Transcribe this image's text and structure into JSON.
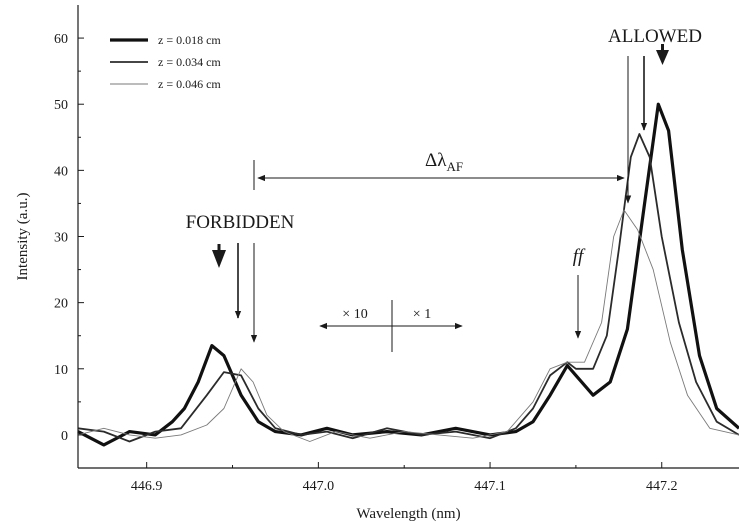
{
  "chart_data": {
    "type": "line",
    "xlabel": "Wavelength (nm)",
    "ylabel": "Intensity (a.u.)",
    "xlim": [
      446.86,
      447.245
    ],
    "ylim": [
      -5,
      65
    ],
    "x_ticks": [
      446.9,
      447.0,
      447.1,
      447.2
    ],
    "x_tick_labels": [
      "446.9",
      "447.0",
      "447.1",
      "447.2"
    ],
    "y_ticks": [
      0,
      10,
      20,
      30,
      40,
      50,
      60
    ],
    "y_tick_labels": [
      "0",
      "10",
      "20",
      "30",
      "40",
      "50",
      "60"
    ],
    "grid": false,
    "legend_position": "top-left",
    "series": [
      {
        "name": "z = 0.018 cm",
        "color": "#111111",
        "weight": "thick",
        "points": [
          [
            446.86,
            0.5
          ],
          [
            446.875,
            -1.5
          ],
          [
            446.89,
            0.5
          ],
          [
            446.905,
            0
          ],
          [
            446.915,
            2
          ],
          [
            446.922,
            4
          ],
          [
            446.93,
            8
          ],
          [
            446.938,
            13.5
          ],
          [
            446.945,
            12
          ],
          [
            446.955,
            6
          ],
          [
            446.965,
            2
          ],
          [
            446.975,
            0.5
          ],
          [
            446.99,
            0
          ],
          [
            447.005,
            1
          ],
          [
            447.02,
            0
          ],
          [
            447.04,
            0.5
          ],
          [
            447.06,
            0
          ],
          [
            447.08,
            1
          ],
          [
            447.1,
            0
          ],
          [
            447.115,
            0.5
          ],
          [
            447.125,
            2
          ],
          [
            447.135,
            6
          ],
          [
            447.145,
            10.5
          ],
          [
            447.15,
            9
          ],
          [
            447.16,
            6
          ],
          [
            447.17,
            8
          ],
          [
            447.18,
            16
          ],
          [
            447.19,
            35
          ],
          [
            447.198,
            50
          ],
          [
            447.204,
            46
          ],
          [
            447.212,
            28
          ],
          [
            447.222,
            12
          ],
          [
            447.232,
            4
          ],
          [
            447.245,
            1
          ]
        ]
      },
      {
        "name": "z = 0.034 cm",
        "color": "#2b2b2b",
        "weight": "medium",
        "points": [
          [
            446.86,
            1
          ],
          [
            446.875,
            0.5
          ],
          [
            446.89,
            -1
          ],
          [
            446.905,
            0.5
          ],
          [
            446.92,
            1
          ],
          [
            446.935,
            6
          ],
          [
            446.945,
            9.5
          ],
          [
            446.955,
            9
          ],
          [
            446.965,
            4
          ],
          [
            446.975,
            1
          ],
          [
            446.99,
            0
          ],
          [
            447.005,
            0.5
          ],
          [
            447.02,
            -0.5
          ],
          [
            447.04,
            1
          ],
          [
            447.06,
            0
          ],
          [
            447.08,
            0.5
          ],
          [
            447.1,
            -0.5
          ],
          [
            447.115,
            1
          ],
          [
            447.125,
            4
          ],
          [
            447.135,
            9
          ],
          [
            447.145,
            11
          ],
          [
            447.15,
            10
          ],
          [
            447.16,
            10
          ],
          [
            447.168,
            15
          ],
          [
            447.175,
            28
          ],
          [
            447.182,
            42
          ],
          [
            447.187,
            45.5
          ],
          [
            447.193,
            42
          ],
          [
            447.2,
            30
          ],
          [
            447.21,
            17
          ],
          [
            447.22,
            8
          ],
          [
            447.232,
            2
          ],
          [
            447.245,
            0
          ]
        ]
      },
      {
        "name": "z = 0.046 cm",
        "color": "#7a7a7a",
        "weight": "thin",
        "points": [
          [
            446.86,
            0
          ],
          [
            446.875,
            1
          ],
          [
            446.89,
            0
          ],
          [
            446.905,
            -0.5
          ],
          [
            446.92,
            0
          ],
          [
            446.935,
            1.5
          ],
          [
            446.945,
            4
          ],
          [
            446.955,
            10
          ],
          [
            446.962,
            8
          ],
          [
            446.97,
            3
          ],
          [
            446.98,
            0.5
          ],
          [
            446.995,
            -1
          ],
          [
            447.01,
            0.5
          ],
          [
            447.03,
            -0.5
          ],
          [
            447.05,
            0.5
          ],
          [
            447.07,
            0
          ],
          [
            447.09,
            -0.5
          ],
          [
            447.11,
            0.5
          ],
          [
            447.125,
            5
          ],
          [
            447.135,
            10
          ],
          [
            447.145,
            11
          ],
          [
            447.155,
            11
          ],
          [
            447.165,
            17
          ],
          [
            447.172,
            30
          ],
          [
            447.178,
            34
          ],
          [
            447.186,
            31
          ],
          [
            447.195,
            25
          ],
          [
            447.205,
            14
          ],
          [
            447.215,
            6
          ],
          [
            447.228,
            1
          ],
          [
            447.245,
            0
          ]
        ]
      }
    ],
    "annotations": [
      {
        "text": "ALLOWED",
        "x": 447.2,
        "y": 61
      },
      {
        "text": "FORBIDDEN",
        "x": 446.945,
        "y": 32
      },
      {
        "text": "Δλ",
        "sub": "AF",
        "x": 447.077,
        "y": 41
      },
      {
        "text": "ff",
        "x": 447.145,
        "y": 27
      },
      {
        "text": "× 10",
        "x": 447.03,
        "y": 18
      },
      {
        "text": "× 1",
        "x": 447.06,
        "y": 18
      }
    ]
  }
}
